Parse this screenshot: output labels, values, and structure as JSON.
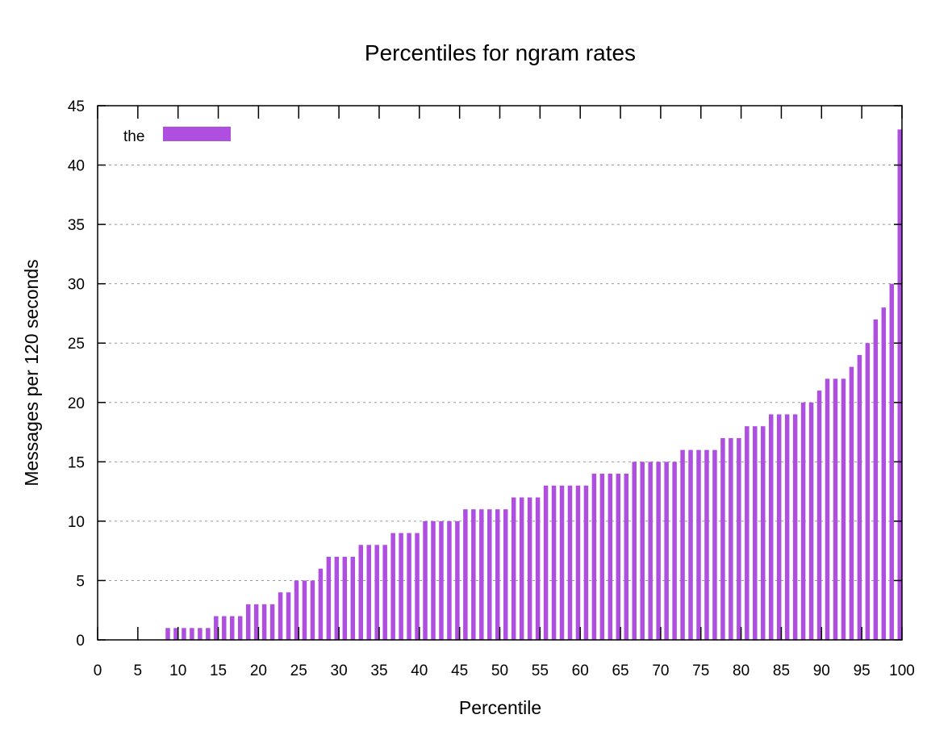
{
  "chart_data": {
    "type": "bar",
    "title": "Percentiles for ngram rates",
    "xlabel": "Percentile",
    "ylabel": "Messages per 120 seconds",
    "xlim": [
      0,
      100
    ],
    "ylim": [
      0,
      45
    ],
    "xticks": [
      0,
      5,
      10,
      15,
      20,
      25,
      30,
      35,
      40,
      45,
      50,
      55,
      60,
      65,
      70,
      75,
      80,
      85,
      90,
      95,
      100
    ],
    "yticks": [
      0,
      5,
      10,
      15,
      20,
      25,
      30,
      35,
      40,
      45
    ],
    "grid": "horizontal",
    "legend_position": "top-left",
    "series": [
      {
        "name": "the",
        "color": "#af4fdf",
        "x": [
          1,
          2,
          3,
          4,
          5,
          6,
          7,
          8,
          9,
          10,
          11,
          12,
          13,
          14,
          15,
          16,
          17,
          18,
          19,
          20,
          21,
          22,
          23,
          24,
          25,
          26,
          27,
          28,
          29,
          30,
          31,
          32,
          33,
          34,
          35,
          36,
          37,
          38,
          39,
          40,
          41,
          42,
          43,
          44,
          45,
          46,
          47,
          48,
          49,
          50,
          51,
          52,
          53,
          54,
          55,
          56,
          57,
          58,
          59,
          60,
          61,
          62,
          63,
          64,
          65,
          66,
          67,
          68,
          69,
          70,
          71,
          72,
          73,
          74,
          75,
          76,
          77,
          78,
          79,
          80,
          81,
          82,
          83,
          84,
          85,
          86,
          87,
          88,
          89,
          90,
          91,
          92,
          93,
          94,
          95,
          96,
          97,
          98,
          99,
          100
        ],
        "values": [
          0,
          0,
          0,
          0,
          0,
          0,
          0,
          0,
          1,
          1,
          1,
          1,
          1,
          1,
          2,
          2,
          2,
          2,
          3,
          3,
          3,
          3,
          4,
          4,
          5,
          5,
          5,
          6,
          7,
          7,
          7,
          7,
          8,
          8,
          8,
          8,
          9,
          9,
          9,
          9,
          10,
          10,
          10,
          10,
          10,
          11,
          11,
          11,
          11,
          11,
          11,
          12,
          12,
          12,
          12,
          13,
          13,
          13,
          13,
          13,
          13,
          14,
          14,
          14,
          14,
          14,
          15,
          15,
          15,
          15,
          15,
          15,
          16,
          16,
          16,
          16,
          16,
          17,
          17,
          17,
          18,
          18,
          18,
          19,
          19,
          19,
          19,
          20,
          20,
          21,
          22,
          22,
          22,
          23,
          24,
          25,
          27,
          28,
          30,
          43
        ]
      }
    ]
  }
}
